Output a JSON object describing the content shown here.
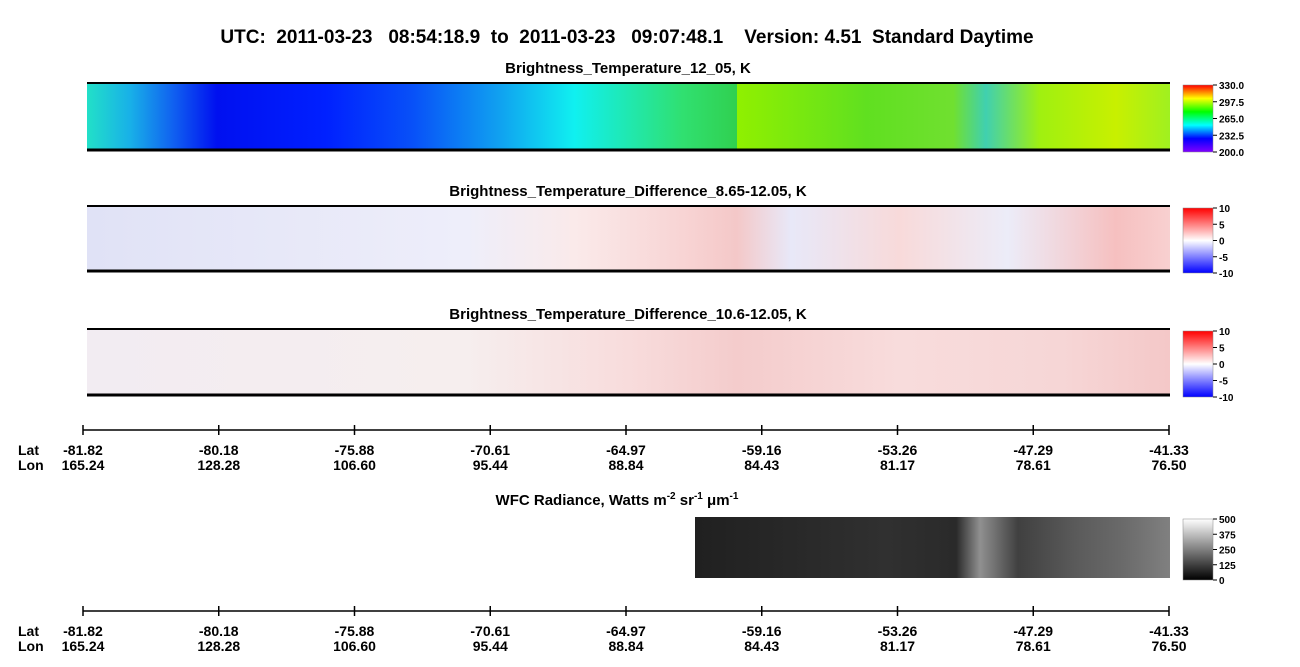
{
  "title": "UTC:  2011-03-23   08:54:18.9  to  2011-03-23   09:07:48.1    Version: 4.51  Standard Daytime",
  "chart_data": [
    {
      "type": "heatmap",
      "title": [
        "Brightness_Temperature_12_05, K"
      ],
      "colormap": "rainbow",
      "clim": [
        200,
        330
      ],
      "cticks": [
        {
          "value": 330,
          "label": "330.0"
        },
        {
          "value": 297.5,
          "label": "297.5"
        },
        {
          "value": 265,
          "label": "265.0"
        },
        {
          "value": 232.5,
          "label": "232.5"
        },
        {
          "value": 200,
          "label": "200.0"
        }
      ]
    },
    {
      "type": "heatmap",
      "title": [
        "Brightness_Temperature_Difference_8.65-12.05, K"
      ],
      "colormap": "bluewhitered",
      "clim": [
        -10,
        10
      ],
      "cticks": [
        10,
        5,
        0,
        -5,
        -10
      ]
    },
    {
      "type": "heatmap",
      "title": [
        "Brightness_Temperature_Difference_10.6-12.05, K"
      ],
      "colormap": "bluewhitered",
      "clim": [
        -10,
        10
      ],
      "cticks": [
        10,
        5,
        0,
        -5,
        -10
      ]
    },
    {
      "type": "heatmap",
      "title": [
        "WFC Radiance, Watts m",
        "-2",
        " sr",
        "-1",
        " μm",
        "-1"
      ],
      "colormap": "gray",
      "clim": [
        0,
        500
      ],
      "cticks": [
        500,
        375,
        250,
        125,
        0
      ]
    }
  ],
  "track_axes": [
    {
      "lat_label": "Lat",
      "lon_label": "Lon",
      "lat": [
        "-81.82",
        "-80.18",
        "-75.88",
        "-70.61",
        "-64.97",
        "-59.16",
        "-53.26",
        "-47.29",
        "-41.33"
      ],
      "lon": [
        "165.24",
        "128.28",
        "106.60",
        "95.44",
        "88.84",
        "84.43",
        "81.17",
        "78.61",
        "76.50"
      ]
    },
    {
      "lat_label": "Lat",
      "lon_label": "Lon",
      "lat": [
        "-81.82",
        "-80.18",
        "-75.88",
        "-70.61",
        "-64.97",
        "-59.16",
        "-53.26",
        "-47.29",
        "-41.33"
      ],
      "lon": [
        "165.24",
        "128.28",
        "106.60",
        "95.44",
        "88.84",
        "84.43",
        "81.17",
        "78.61",
        "76.50"
      ]
    }
  ]
}
